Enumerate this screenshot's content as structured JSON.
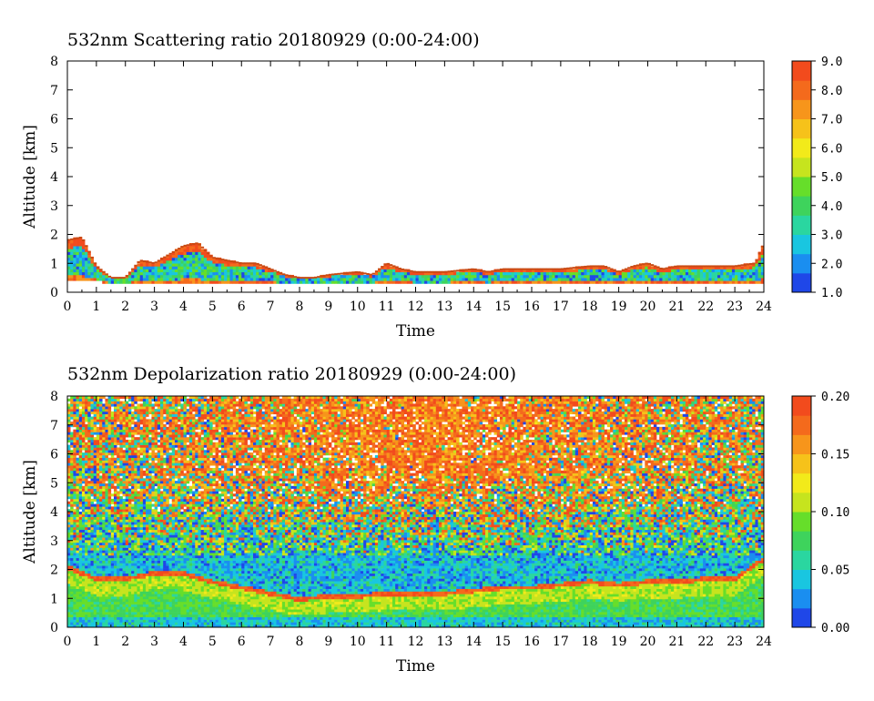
{
  "colors": {
    "colormap": [
      "#1f47e8",
      "#1a8ef0",
      "#19c6e0",
      "#2ad6a0",
      "#3ed35c",
      "#66de2a",
      "#c6e41e",
      "#f2ea1a",
      "#f6c21a",
      "#f7951b",
      "#f46a1c",
      "#f24b1d"
    ],
    "cloud_edge": "#c84a14",
    "background": "#ffffff"
  },
  "chart_data": [
    {
      "type": "heatmap",
      "title": "532nm Scattering ratio  20180929 (0:00-24:00)",
      "xlabel": "Time",
      "ylabel": "Altitude [km]",
      "xlim": [
        0,
        24
      ],
      "ylim": [
        0,
        8
      ],
      "xticks": [
        "0",
        "1",
        "2",
        "3",
        "4",
        "5",
        "6",
        "7",
        "8",
        "9",
        "10",
        "11",
        "12",
        "13",
        "14",
        "15",
        "16",
        "17",
        "18",
        "19",
        "20",
        "21",
        "22",
        "23",
        "24"
      ],
      "yticks": [
        "0",
        "1",
        "2",
        "3",
        "4",
        "5",
        "6",
        "7",
        "8"
      ],
      "colorbar": {
        "min": 1.0,
        "max": 9.0,
        "ticks": [
          "1.0",
          "2.0",
          "3.0",
          "4.0",
          "5.0",
          "6.0",
          "7.0",
          "8.0",
          "9.0"
        ]
      },
      "cloud_top_km": [
        [
          0,
          1.8
        ],
        [
          0.5,
          1.9
        ],
        [
          1,
          0.9
        ],
        [
          1.5,
          0.5
        ],
        [
          2,
          0.5
        ],
        [
          2.5,
          1.1
        ],
        [
          3,
          1.0
        ],
        [
          3.5,
          1.3
        ],
        [
          4,
          1.6
        ],
        [
          4.5,
          1.7
        ],
        [
          5,
          1.2
        ],
        [
          5.5,
          1.1
        ],
        [
          6,
          1.0
        ],
        [
          6.5,
          1.0
        ],
        [
          7,
          0.8
        ],
        [
          7.5,
          0.6
        ],
        [
          8,
          0.5
        ],
        [
          8.5,
          0.5
        ],
        [
          9,
          0.6
        ],
        [
          10,
          0.7
        ],
        [
          10.5,
          0.6
        ],
        [
          11,
          1.0
        ],
        [
          11.5,
          0.8
        ],
        [
          12,
          0.7
        ],
        [
          13,
          0.7
        ],
        [
          14,
          0.8
        ],
        [
          14.5,
          0.7
        ],
        [
          15,
          0.8
        ],
        [
          16,
          0.8
        ],
        [
          17,
          0.8
        ],
        [
          18,
          0.9
        ],
        [
          18.5,
          0.9
        ],
        [
          19,
          0.7
        ],
        [
          19.5,
          0.9
        ],
        [
          20,
          1.0
        ],
        [
          20.5,
          0.8
        ],
        [
          21,
          0.9
        ],
        [
          22,
          0.9
        ],
        [
          23,
          0.9
        ],
        [
          23.7,
          1.0
        ],
        [
          24,
          1.7
        ]
      ],
      "cloud_base_km": [
        [
          0,
          0.4
        ],
        [
          1,
          0.4
        ],
        [
          1.5,
          0.3
        ],
        [
          2,
          0.3
        ],
        [
          3,
          0.3
        ],
        [
          4,
          0.3
        ],
        [
          5,
          0.3
        ],
        [
          6,
          0.3
        ],
        [
          7,
          0.3
        ],
        [
          8,
          0.3
        ],
        [
          9,
          0.3
        ],
        [
          10,
          0.3
        ],
        [
          11,
          0.3
        ],
        [
          12,
          0.3
        ],
        [
          13,
          0.3
        ],
        [
          14,
          0.3
        ],
        [
          15,
          0.3
        ],
        [
          16,
          0.3
        ],
        [
          17,
          0.3
        ],
        [
          18,
          0.3
        ],
        [
          19,
          0.3
        ],
        [
          20,
          0.3
        ],
        [
          21,
          0.3
        ],
        [
          22,
          0.3
        ],
        [
          23,
          0.3
        ],
        [
          24,
          0.3
        ]
      ]
    },
    {
      "type": "heatmap",
      "title": "532nm Depolarization ratio  20180929 (0:00-24:00)",
      "xlabel": "Time",
      "ylabel": "Altitude [km]",
      "xlim": [
        0,
        24
      ],
      "ylim": [
        0,
        8
      ],
      "xticks": [
        "0",
        "1",
        "2",
        "3",
        "4",
        "5",
        "6",
        "7",
        "8",
        "9",
        "10",
        "11",
        "12",
        "13",
        "14",
        "15",
        "16",
        "17",
        "18",
        "19",
        "20",
        "21",
        "22",
        "23",
        "24"
      ],
      "yticks": [
        "0",
        "1",
        "2",
        "3",
        "4",
        "5",
        "6",
        "7",
        "8"
      ],
      "colorbar": {
        "min": 0.0,
        "max": 0.2,
        "ticks": [
          "0.00",
          "0.05",
          "0.10",
          "0.15",
          "0.20"
        ]
      },
      "boundary_layer_top_km": [
        [
          0,
          2.0
        ],
        [
          1,
          1.6
        ],
        [
          2,
          1.6
        ],
        [
          3,
          1.8
        ],
        [
          4,
          1.8
        ],
        [
          5,
          1.5
        ],
        [
          6,
          1.3
        ],
        [
          7,
          1.1
        ],
        [
          8,
          0.9
        ],
        [
          9,
          1.0
        ],
        [
          10,
          1.0
        ],
        [
          11,
          1.1
        ],
        [
          12,
          1.1
        ],
        [
          13,
          1.1
        ],
        [
          14,
          1.2
        ],
        [
          15,
          1.3
        ],
        [
          16,
          1.3
        ],
        [
          17,
          1.4
        ],
        [
          18,
          1.5
        ],
        [
          19,
          1.4
        ],
        [
          20,
          1.5
        ],
        [
          21,
          1.5
        ],
        [
          22,
          1.6
        ],
        [
          23,
          1.6
        ],
        [
          24,
          2.3
        ]
      ]
    }
  ]
}
